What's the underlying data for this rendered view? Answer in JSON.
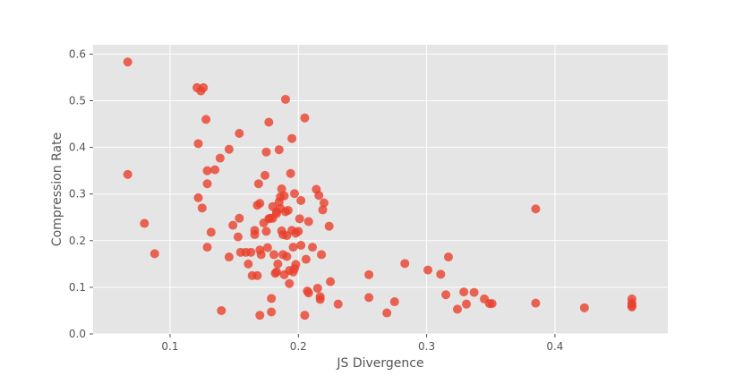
{
  "chart_data": {
    "type": "scatter",
    "title": "",
    "xlabel": "JS Divergence",
    "ylabel": "Compression Rate",
    "xlim": [
      0.04,
      0.488
    ],
    "ylim": [
      0.0,
      0.62
    ],
    "xticks": [
      0.1,
      0.2,
      0.3,
      0.4
    ],
    "yticks": [
      0.0,
      0.1,
      0.2,
      0.3,
      0.4,
      0.5,
      0.6
    ],
    "xtick_labels": [
      "0.1",
      "0.2",
      "0.3",
      "0.4"
    ],
    "ytick_labels": [
      "0.0",
      "0.1",
      "0.2",
      "0.3",
      "0.4",
      "0.5",
      "0.6"
    ],
    "grid": true,
    "colors": {
      "point": "#e8402c",
      "background": "#e5e5e5",
      "grid": "#ffffff",
      "text": "#555555"
    },
    "series": [
      {
        "points": [
          [
            0.067,
            0.583
          ],
          [
            0.067,
            0.342
          ],
          [
            0.08,
            0.237
          ],
          [
            0.088,
            0.172
          ],
          [
            0.121,
            0.528
          ],
          [
            0.124,
            0.521
          ],
          [
            0.126,
            0.528
          ],
          [
            0.128,
            0.46
          ],
          [
            0.122,
            0.408
          ],
          [
            0.122,
            0.292
          ],
          [
            0.125,
            0.27
          ],
          [
            0.129,
            0.35
          ],
          [
            0.129,
            0.322
          ],
          [
            0.129,
            0.186
          ],
          [
            0.132,
            0.218
          ],
          [
            0.135,
            0.352
          ],
          [
            0.139,
            0.377
          ],
          [
            0.14,
            0.05
          ],
          [
            0.146,
            0.396
          ],
          [
            0.146,
            0.165
          ],
          [
            0.149,
            0.233
          ],
          [
            0.154,
            0.43
          ],
          [
            0.154,
            0.248
          ],
          [
            0.153,
            0.208
          ],
          [
            0.155,
            0.175
          ],
          [
            0.159,
            0.175
          ],
          [
            0.161,
            0.15
          ],
          [
            0.163,
            0.175
          ],
          [
            0.164,
            0.125
          ],
          [
            0.166,
            0.222
          ],
          [
            0.166,
            0.213
          ],
          [
            0.168,
            0.125
          ],
          [
            0.168,
            0.276
          ],
          [
            0.169,
            0.322
          ],
          [
            0.17,
            0.28
          ],
          [
            0.17,
            0.18
          ],
          [
            0.17,
            0.04
          ],
          [
            0.171,
            0.17
          ],
          [
            0.173,
            0.238
          ],
          [
            0.174,
            0.34
          ],
          [
            0.175,
            0.39
          ],
          [
            0.175,
            0.22
          ],
          [
            0.176,
            0.185
          ],
          [
            0.177,
            0.454
          ],
          [
            0.177,
            0.247
          ],
          [
            0.178,
            0.248
          ],
          [
            0.179,
            0.076
          ],
          [
            0.179,
            0.047
          ],
          [
            0.18,
            0.273
          ],
          [
            0.18,
            0.248
          ],
          [
            0.181,
            0.17
          ],
          [
            0.182,
            0.13
          ],
          [
            0.183,
            0.262
          ],
          [
            0.183,
            0.258
          ],
          [
            0.183,
            0.133
          ],
          [
            0.184,
            0.15
          ],
          [
            0.185,
            0.395
          ],
          [
            0.185,
            0.283
          ],
          [
            0.186,
            0.294
          ],
          [
            0.186,
            0.269
          ],
          [
            0.187,
            0.311
          ],
          [
            0.187,
            0.221
          ],
          [
            0.188,
            0.213
          ],
          [
            0.188,
            0.17
          ],
          [
            0.189,
            0.296
          ],
          [
            0.189,
            0.127
          ],
          [
            0.19,
            0.503
          ],
          [
            0.19,
            0.262
          ],
          [
            0.191,
            0.211
          ],
          [
            0.191,
            0.166
          ],
          [
            0.192,
            0.265
          ],
          [
            0.193,
            0.136
          ],
          [
            0.193,
            0.108
          ],
          [
            0.194,
            0.344
          ],
          [
            0.195,
            0.419
          ],
          [
            0.195,
            0.222
          ],
          [
            0.196,
            0.186
          ],
          [
            0.196,
            0.133
          ],
          [
            0.197,
            0.301
          ],
          [
            0.197,
            0.14
          ],
          [
            0.198,
            0.216
          ],
          [
            0.198,
            0.149
          ],
          [
            0.2,
            0.22
          ],
          [
            0.201,
            0.247
          ],
          [
            0.202,
            0.286
          ],
          [
            0.202,
            0.19
          ],
          [
            0.205,
            0.463
          ],
          [
            0.205,
            0.04
          ],
          [
            0.206,
            0.16
          ],
          [
            0.207,
            0.092
          ],
          [
            0.208,
            0.241
          ],
          [
            0.208,
            0.088
          ],
          [
            0.211,
            0.186
          ],
          [
            0.214,
            0.31
          ],
          [
            0.215,
            0.098
          ],
          [
            0.216,
            0.297
          ],
          [
            0.217,
            0.08
          ],
          [
            0.217,
            0.074
          ],
          [
            0.218,
            0.17
          ],
          [
            0.219,
            0.266
          ],
          [
            0.22,
            0.281
          ],
          [
            0.224,
            0.231
          ],
          [
            0.225,
            0.112
          ],
          [
            0.231,
            0.064
          ],
          [
            0.255,
            0.127
          ],
          [
            0.255,
            0.078
          ],
          [
            0.269,
            0.045
          ],
          [
            0.275,
            0.069
          ],
          [
            0.283,
            0.151
          ],
          [
            0.301,
            0.137
          ],
          [
            0.311,
            0.128
          ],
          [
            0.315,
            0.084
          ],
          [
            0.317,
            0.165
          ],
          [
            0.324,
            0.053
          ],
          [
            0.329,
            0.09
          ],
          [
            0.331,
            0.064
          ],
          [
            0.337,
            0.089
          ],
          [
            0.345,
            0.075
          ],
          [
            0.349,
            0.065
          ],
          [
            0.351,
            0.065
          ],
          [
            0.385,
            0.268
          ],
          [
            0.385,
            0.066
          ],
          [
            0.423,
            0.056
          ],
          [
            0.46,
            0.075
          ],
          [
            0.46,
            0.066
          ],
          [
            0.46,
            0.061
          ],
          [
            0.46,
            0.058
          ]
        ]
      }
    ]
  }
}
